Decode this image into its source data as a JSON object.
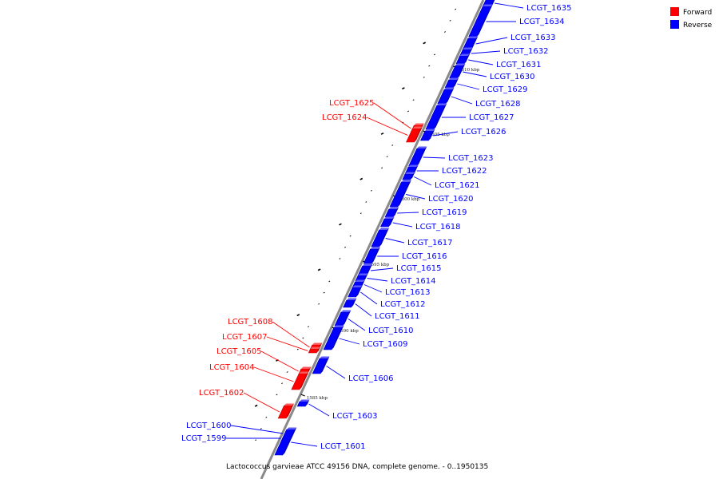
{
  "caption": "Lactococcus garvieae ATCC 49156 DNA, complete genome. - 0..1950135",
  "legend": [
    {
      "label": "Forward",
      "color": "#ff0000"
    },
    {
      "label": "Reverse",
      "color": "#0000ff"
    }
  ],
  "colors": {
    "forward": "#ff0000",
    "reverse": "#0000ff",
    "backbone": "#8a8a8a"
  },
  "ticks": [
    "1585 kbp",
    "1590 kbp",
    "1595 kbp",
    "1600 kbp",
    "1605 kbp",
    "1610 kbp"
  ],
  "genes": [
    {
      "name": "LCGT_1635",
      "strand": "reverse"
    },
    {
      "name": "LCGT_1634",
      "strand": "reverse"
    },
    {
      "name": "LCGT_1633",
      "strand": "reverse"
    },
    {
      "name": "LCGT_1632",
      "strand": "reverse"
    },
    {
      "name": "LCGT_1631",
      "strand": "reverse"
    },
    {
      "name": "LCGT_1630",
      "strand": "reverse"
    },
    {
      "name": "LCGT_1629",
      "strand": "reverse"
    },
    {
      "name": "LCGT_1628",
      "strand": "reverse"
    },
    {
      "name": "LCGT_1627",
      "strand": "reverse"
    },
    {
      "name": "LCGT_1626",
      "strand": "reverse"
    },
    {
      "name": "LCGT_1625",
      "strand": "forward"
    },
    {
      "name": "LCGT_1624",
      "strand": "forward"
    },
    {
      "name": "LCGT_1623",
      "strand": "reverse"
    },
    {
      "name": "LCGT_1622",
      "strand": "reverse"
    },
    {
      "name": "LCGT_1621",
      "strand": "reverse"
    },
    {
      "name": "LCGT_1620",
      "strand": "reverse"
    },
    {
      "name": "LCGT_1619",
      "strand": "reverse"
    },
    {
      "name": "LCGT_1618",
      "strand": "reverse"
    },
    {
      "name": "LCGT_1617",
      "strand": "reverse"
    },
    {
      "name": "LCGT_1616",
      "strand": "reverse"
    },
    {
      "name": "LCGT_1615",
      "strand": "reverse"
    },
    {
      "name": "LCGT_1614",
      "strand": "reverse"
    },
    {
      "name": "LCGT_1613",
      "strand": "reverse"
    },
    {
      "name": "LCGT_1612",
      "strand": "reverse"
    },
    {
      "name": "LCGT_1611",
      "strand": "reverse"
    },
    {
      "name": "LCGT_1610",
      "strand": "reverse"
    },
    {
      "name": "LCGT_1609",
      "strand": "reverse"
    },
    {
      "name": "LCGT_1608",
      "strand": "forward"
    },
    {
      "name": "LCGT_1607",
      "strand": "forward"
    },
    {
      "name": "LCGT_1605",
      "strand": "forward"
    },
    {
      "name": "LCGT_1604",
      "strand": "forward"
    },
    {
      "name": "LCGT_1606",
      "strand": "reverse"
    },
    {
      "name": "LCGT_1602",
      "strand": "forward"
    },
    {
      "name": "LCGT_1603",
      "strand": "reverse"
    },
    {
      "name": "LCGT_1600",
      "strand": "reverse"
    },
    {
      "name": "LCGT_1599",
      "strand": "reverse"
    },
    {
      "name": "LCGT_1601",
      "strand": "reverse"
    }
  ]
}
